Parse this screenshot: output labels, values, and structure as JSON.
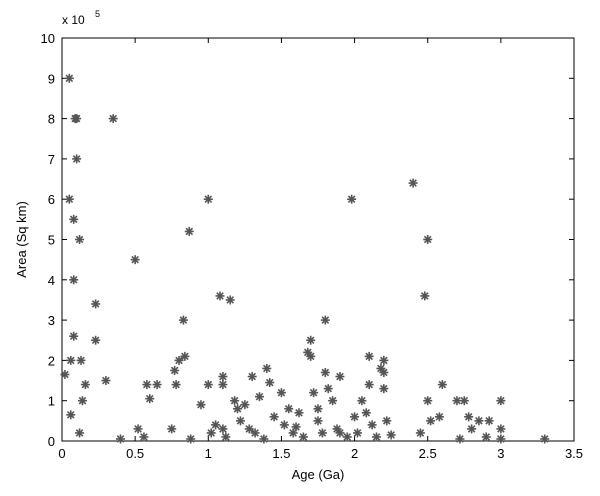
{
  "colors": {
    "background": "#ffffff",
    "axes": "#000000",
    "marker": "#555555"
  },
  "chart_data": {
    "type": "scatter",
    "title": "",
    "xlabel": "Age (Ga)",
    "ylabel": "Area (Sq km)",
    "y_multiplier": {
      "base": "x 10",
      "exponent": "5"
    },
    "xlim": [
      0,
      3.5
    ],
    "ylim": [
      0,
      10
    ],
    "x_ticks": [
      "0",
      "0.5",
      "1",
      "1.5",
      "2",
      "2.5",
      "3",
      "3.5"
    ],
    "y_ticks": [
      "0",
      "1",
      "2",
      "3",
      "4",
      "5",
      "6",
      "7",
      "8",
      "9",
      "10"
    ],
    "grid": false,
    "marker": "asterisk",
    "series": [
      {
        "values_unit": "x 10^5 sq km",
        "points": [
          [
            0.02,
            1.65
          ],
          [
            0.05,
            9.0
          ],
          [
            0.05,
            6.0
          ],
          [
            0.06,
            2.0
          ],
          [
            0.06,
            0.65
          ],
          [
            0.08,
            5.5
          ],
          [
            0.08,
            4.0
          ],
          [
            0.08,
            2.6
          ],
          [
            0.09,
            8.0
          ],
          [
            0.1,
            8.0
          ],
          [
            0.1,
            7.0
          ],
          [
            0.12,
            5.0
          ],
          [
            0.13,
            2.0
          ],
          [
            0.14,
            1.0
          ],
          [
            0.12,
            0.2
          ],
          [
            0.16,
            1.4
          ],
          [
            0.23,
            3.4
          ],
          [
            0.23,
            2.5
          ],
          [
            0.3,
            1.5
          ],
          [
            0.35,
            8.0
          ],
          [
            0.4,
            0.05
          ],
          [
            0.5,
            4.5
          ],
          [
            0.52,
            0.3
          ],
          [
            0.56,
            0.1
          ],
          [
            0.58,
            1.4
          ],
          [
            0.6,
            1.05
          ],
          [
            0.65,
            1.4
          ],
          [
            0.75,
            0.3
          ],
          [
            0.77,
            1.75
          ],
          [
            0.78,
            1.4
          ],
          [
            0.8,
            2.0
          ],
          [
            0.83,
            3.0
          ],
          [
            0.84,
            2.1
          ],
          [
            0.87,
            5.2
          ],
          [
            0.88,
            0.05
          ],
          [
            0.95,
            0.9
          ],
          [
            1.0,
            6.0
          ],
          [
            1.0,
            1.4
          ],
          [
            1.02,
            0.2
          ],
          [
            1.05,
            0.4
          ],
          [
            1.08,
            3.6
          ],
          [
            1.1,
            1.6
          ],
          [
            1.1,
            1.4
          ],
          [
            1.1,
            0.3
          ],
          [
            1.12,
            0.1
          ],
          [
            1.15,
            3.5
          ],
          [
            1.18,
            1.0
          ],
          [
            1.2,
            0.8
          ],
          [
            1.22,
            0.5
          ],
          [
            1.25,
            0.9
          ],
          [
            1.28,
            0.3
          ],
          [
            1.3,
            1.6
          ],
          [
            1.32,
            0.2
          ],
          [
            1.35,
            1.1
          ],
          [
            1.38,
            0.05
          ],
          [
            1.4,
            1.8
          ],
          [
            1.42,
            1.45
          ],
          [
            1.45,
            0.6
          ],
          [
            1.5,
            1.2
          ],
          [
            1.52,
            0.4
          ],
          [
            1.55,
            0.8
          ],
          [
            1.58,
            0.2
          ],
          [
            1.6,
            0.35
          ],
          [
            1.62,
            0.7
          ],
          [
            1.65,
            0.1
          ],
          [
            1.68,
            2.2
          ],
          [
            1.7,
            2.5
          ],
          [
            1.7,
            2.1
          ],
          [
            1.72,
            1.2
          ],
          [
            1.75,
            0.8
          ],
          [
            1.75,
            0.5
          ],
          [
            1.78,
            0.2
          ],
          [
            1.8,
            3.0
          ],
          [
            1.8,
            1.7
          ],
          [
            1.82,
            1.3
          ],
          [
            1.85,
            1.0
          ],
          [
            1.88,
            0.3
          ],
          [
            1.9,
            0.2
          ],
          [
            1.9,
            1.6
          ],
          [
            1.95,
            0.1
          ],
          [
            1.98,
            6.0
          ],
          [
            2.0,
            0.6
          ],
          [
            2.02,
            0.2
          ],
          [
            2.05,
            1.0
          ],
          [
            2.08,
            0.7
          ],
          [
            2.1,
            2.1
          ],
          [
            2.1,
            1.4
          ],
          [
            2.12,
            0.4
          ],
          [
            2.15,
            0.1
          ],
          [
            2.18,
            1.8
          ],
          [
            2.2,
            2.0
          ],
          [
            2.2,
            1.7
          ],
          [
            2.2,
            1.3
          ],
          [
            2.22,
            0.5
          ],
          [
            2.25,
            0.15
          ],
          [
            2.4,
            6.4
          ],
          [
            2.45,
            0.2
          ],
          [
            2.48,
            3.6
          ],
          [
            2.5,
            5.0
          ],
          [
            2.5,
            1.0
          ],
          [
            2.52,
            0.5
          ],
          [
            2.58,
            0.6
          ],
          [
            2.6,
            1.4
          ],
          [
            2.7,
            1.0
          ],
          [
            2.72,
            0.05
          ],
          [
            2.75,
            1.0
          ],
          [
            2.78,
            0.6
          ],
          [
            2.8,
            0.3
          ],
          [
            2.85,
            0.5
          ],
          [
            2.9,
            0.1
          ],
          [
            2.92,
            0.5
          ],
          [
            3.0,
            1.0
          ],
          [
            3.0,
            0.3
          ],
          [
            3.0,
            0.05
          ],
          [
            3.3,
            0.05
          ]
        ]
      }
    ]
  }
}
